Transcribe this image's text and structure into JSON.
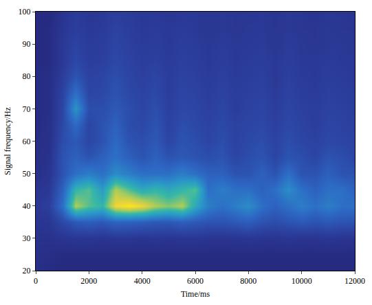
{
  "chart_data": {
    "type": "heatmap",
    "x_label": "Time/ms",
    "y_label": "Signal frequency/Hz",
    "x": [
      0,
      500,
      1000,
      1500,
      2000,
      2500,
      3000,
      3500,
      4000,
      4500,
      5000,
      5500,
      6000,
      6500,
      7000,
      7500,
      8000,
      8500,
      9000,
      9500,
      10000,
      10500,
      11000,
      11500,
      12000
    ],
    "y": [
      20,
      25,
      30,
      35,
      40,
      45,
      50,
      55,
      60,
      65,
      70,
      75,
      80,
      85,
      90,
      95,
      100
    ],
    "cells": [
      [
        0.05,
        0.04,
        0.03,
        0.03,
        0.03,
        0.03,
        0.03,
        0.03,
        0.03,
        0.03,
        0.03,
        0.03,
        0.03,
        0.03,
        0.03,
        0.03,
        0.03,
        0.03,
        0.03,
        0.03,
        0.03,
        0.03,
        0.03,
        0.03,
        0.03
      ],
      [
        0.06,
        0.05,
        0.04,
        0.04,
        0.04,
        0.04,
        0.04,
        0.04,
        0.04,
        0.04,
        0.04,
        0.04,
        0.04,
        0.04,
        0.04,
        0.04,
        0.04,
        0.04,
        0.04,
        0.04,
        0.04,
        0.04,
        0.04,
        0.04,
        0.04
      ],
      [
        0.07,
        0.07,
        0.08,
        0.09,
        0.09,
        0.08,
        0.09,
        0.09,
        0.08,
        0.09,
        0.08,
        0.09,
        0.09,
        0.08,
        0.08,
        0.08,
        0.09,
        0.08,
        0.08,
        0.09,
        0.08,
        0.08,
        0.09,
        0.08,
        0.08
      ],
      [
        0.08,
        0.09,
        0.16,
        0.22,
        0.24,
        0.22,
        0.26,
        0.25,
        0.24,
        0.22,
        0.22,
        0.24,
        0.22,
        0.2,
        0.2,
        0.22,
        0.24,
        0.2,
        0.18,
        0.2,
        0.22,
        0.2,
        0.22,
        0.2,
        0.2
      ],
      [
        0.1,
        0.12,
        0.3,
        0.7,
        0.6,
        0.55,
        0.8,
        0.85,
        0.8,
        0.7,
        0.65,
        0.7,
        0.5,
        0.35,
        0.3,
        0.35,
        0.4,
        0.3,
        0.25,
        0.3,
        0.35,
        0.3,
        0.35,
        0.3,
        0.3
      ],
      [
        0.08,
        0.1,
        0.25,
        0.55,
        0.6,
        0.45,
        0.7,
        0.6,
        0.5,
        0.55,
        0.5,
        0.55,
        0.6,
        0.3,
        0.35,
        0.3,
        0.3,
        0.25,
        0.3,
        0.4,
        0.3,
        0.25,
        0.3,
        0.3,
        0.25
      ],
      [
        0.06,
        0.08,
        0.2,
        0.3,
        0.35,
        0.3,
        0.4,
        0.35,
        0.3,
        0.3,
        0.3,
        0.35,
        0.3,
        0.25,
        0.25,
        0.2,
        0.2,
        0.25,
        0.2,
        0.3,
        0.2,
        0.2,
        0.25,
        0.2,
        0.2
      ],
      [
        0.05,
        0.07,
        0.2,
        0.25,
        0.2,
        0.25,
        0.3,
        0.25,
        0.2,
        0.25,
        0.2,
        0.22,
        0.2,
        0.18,
        0.2,
        0.15,
        0.18,
        0.2,
        0.15,
        0.2,
        0.18,
        0.15,
        0.2,
        0.18,
        0.15
      ],
      [
        0.05,
        0.06,
        0.18,
        0.22,
        0.15,
        0.2,
        0.28,
        0.2,
        0.18,
        0.22,
        0.15,
        0.2,
        0.18,
        0.15,
        0.18,
        0.14,
        0.16,
        0.18,
        0.14,
        0.18,
        0.15,
        0.14,
        0.16,
        0.15,
        0.14
      ],
      [
        0.04,
        0.06,
        0.16,
        0.28,
        0.15,
        0.2,
        0.25,
        0.18,
        0.16,
        0.2,
        0.14,
        0.18,
        0.16,
        0.14,
        0.16,
        0.14,
        0.15,
        0.16,
        0.13,
        0.16,
        0.14,
        0.12,
        0.15,
        0.14,
        0.13
      ],
      [
        0.04,
        0.05,
        0.15,
        0.42,
        0.18,
        0.18,
        0.22,
        0.18,
        0.15,
        0.18,
        0.13,
        0.16,
        0.15,
        0.13,
        0.15,
        0.12,
        0.14,
        0.15,
        0.12,
        0.15,
        0.13,
        0.12,
        0.14,
        0.13,
        0.12
      ],
      [
        0.04,
        0.05,
        0.14,
        0.3,
        0.15,
        0.16,
        0.2,
        0.16,
        0.14,
        0.16,
        0.12,
        0.15,
        0.14,
        0.12,
        0.14,
        0.12,
        0.13,
        0.14,
        0.11,
        0.14,
        0.12,
        0.11,
        0.13,
        0.12,
        0.11
      ],
      [
        0.04,
        0.05,
        0.12,
        0.2,
        0.14,
        0.15,
        0.18,
        0.15,
        0.13,
        0.15,
        0.12,
        0.14,
        0.13,
        0.11,
        0.13,
        0.11,
        0.12,
        0.13,
        0.1,
        0.13,
        0.11,
        0.1,
        0.12,
        0.11,
        0.1
      ],
      [
        0.03,
        0.04,
        0.1,
        0.16,
        0.12,
        0.13,
        0.16,
        0.14,
        0.12,
        0.13,
        0.11,
        0.13,
        0.12,
        0.1,
        0.12,
        0.1,
        0.11,
        0.12,
        0.1,
        0.12,
        0.1,
        0.1,
        0.11,
        0.1,
        0.1
      ],
      [
        0.03,
        0.04,
        0.1,
        0.14,
        0.11,
        0.12,
        0.15,
        0.13,
        0.11,
        0.12,
        0.1,
        0.12,
        0.11,
        0.1,
        0.11,
        0.1,
        0.1,
        0.11,
        0.09,
        0.11,
        0.1,
        0.09,
        0.1,
        0.1,
        0.09
      ],
      [
        0.03,
        0.04,
        0.09,
        0.12,
        0.1,
        0.11,
        0.14,
        0.12,
        0.1,
        0.11,
        0.1,
        0.11,
        0.1,
        0.09,
        0.1,
        0.09,
        0.1,
        0.1,
        0.09,
        0.1,
        0.09,
        0.09,
        0.1,
        0.09,
        0.09
      ],
      [
        0.03,
        0.03,
        0.08,
        0.11,
        0.09,
        0.1,
        0.12,
        0.11,
        0.1,
        0.1,
        0.09,
        0.1,
        0.1,
        0.09,
        0.1,
        0.09,
        0.09,
        0.1,
        0.08,
        0.1,
        0.09,
        0.08,
        0.09,
        0.09,
        0.08
      ]
    ],
    "xlim": [
      0,
      12000
    ],
    "ylim": [
      20,
      100
    ],
    "xticks": [
      0,
      2000,
      4000,
      6000,
      8000,
      10000,
      12000
    ],
    "yticks": [
      20,
      30,
      40,
      50,
      60,
      70,
      80,
      90,
      100
    ]
  }
}
